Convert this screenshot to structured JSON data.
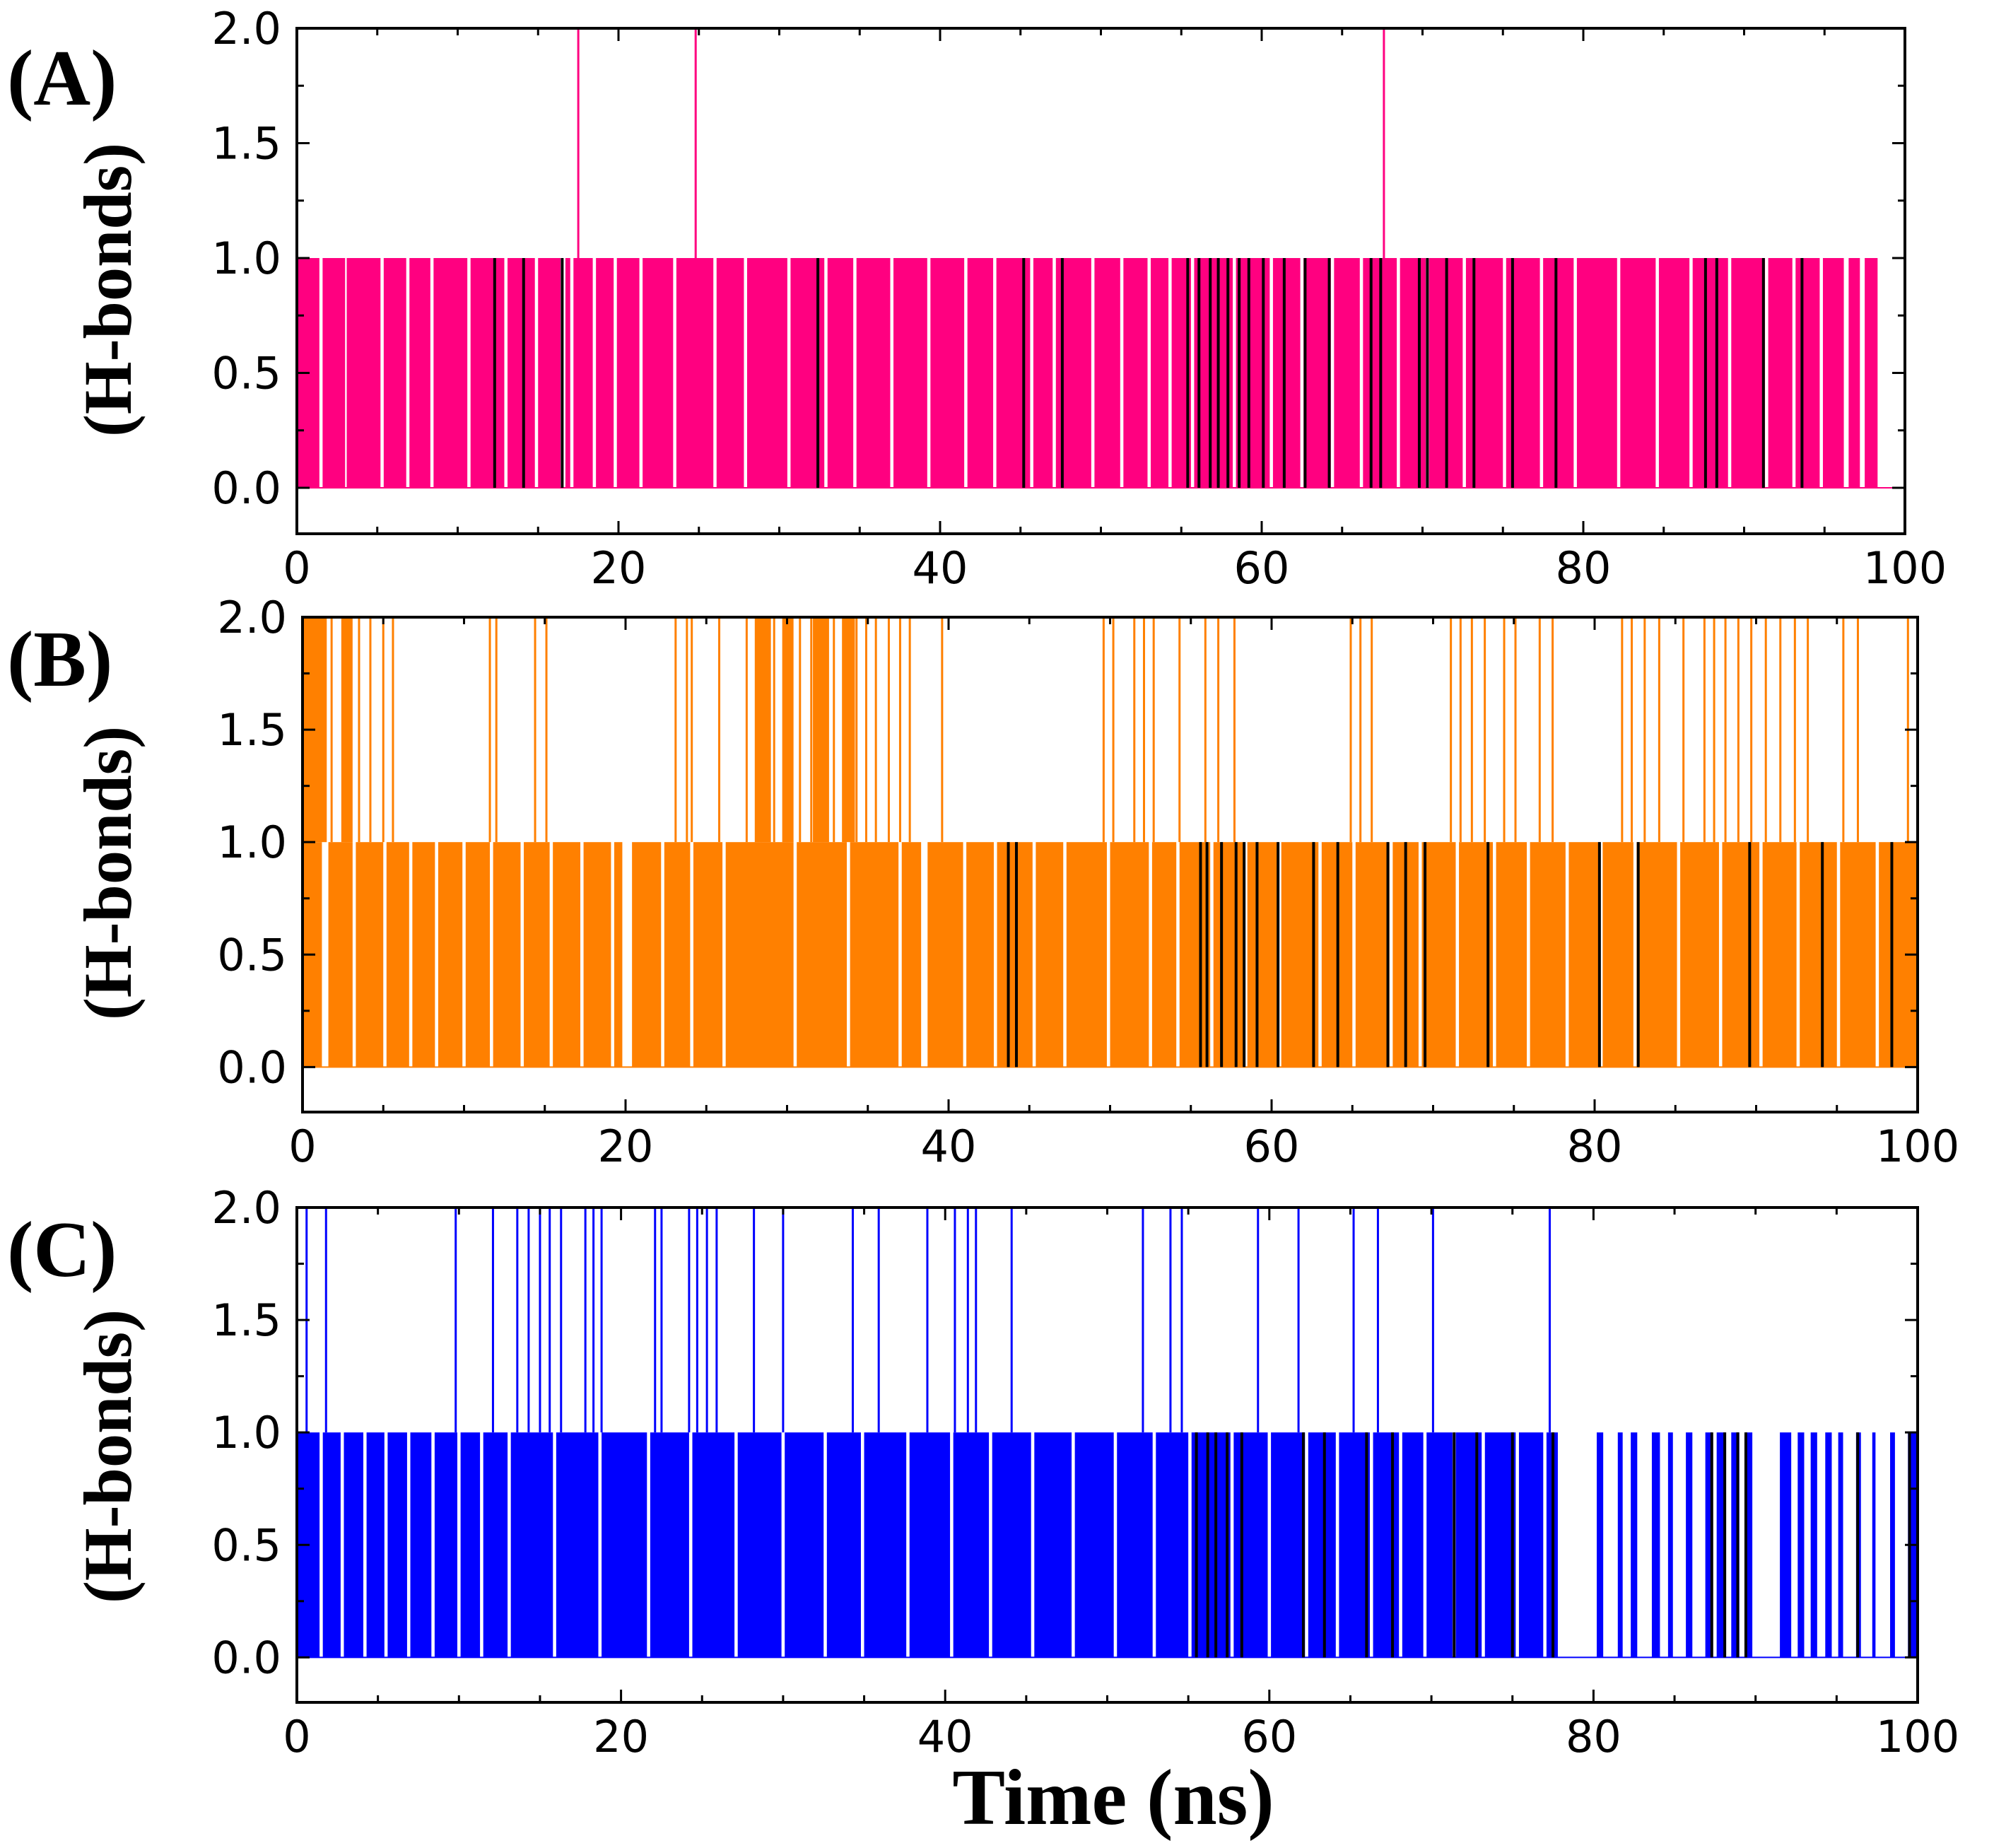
{
  "xlabel": "Time (ns)",
  "colors": {
    "A": "#ff0080",
    "B": "#ff8000",
    "C": "#0000ff",
    "dark": "#000000",
    "frame": "#000000"
  },
  "chart_data": [
    {
      "id": "A",
      "type": "bar",
      "title": "(A)",
      "ylabel": "(H-bonds)",
      "xlabel": "",
      "xlim": [
        0,
        100
      ],
      "ylim": [
        -0.2,
        2.0
      ],
      "xticks": [
        "0",
        "20",
        "40",
        "60",
        "80",
        "100"
      ],
      "yticks": [
        "0.0",
        "0.5",
        "1.0",
        "1.5",
        "2.0"
      ],
      "grid": false,
      "series": [
        {
          "name": "H-bonds",
          "color": "#ff0080",
          "ones": [
            [
              0.0,
              1.4
            ],
            [
              1.6,
              3.0
            ],
            [
              3.1,
              5.2
            ],
            [
              5.4,
              6.8
            ],
            [
              7.0,
              8.3
            ],
            [
              8.5,
              10.6
            ],
            [
              10.8,
              12.9
            ],
            [
              13.1,
              14.8
            ],
            [
              15.0,
              16.4
            ],
            [
              16.7,
              17.0
            ],
            [
              17.2,
              18.4
            ],
            [
              18.6,
              19.7
            ],
            [
              19.9,
              21.3
            ],
            [
              21.5,
              23.4
            ],
            [
              23.6,
              25.9
            ],
            [
              26.1,
              27.8
            ],
            [
              28.0,
              30.5
            ],
            [
              30.7,
              32.8
            ],
            [
              33.0,
              34.6
            ],
            [
              34.8,
              36.9
            ],
            [
              37.1,
              39.2
            ],
            [
              39.4,
              41.5
            ],
            [
              41.7,
              43.3
            ],
            [
              43.5,
              45.6
            ],
            [
              45.8,
              47.0
            ],
            [
              47.2,
              49.4
            ],
            [
              49.6,
              51.2
            ],
            [
              51.4,
              52.9
            ],
            [
              53.1,
              54.2
            ],
            [
              54.4,
              55.6
            ],
            [
              55.8,
              58.2
            ],
            [
              58.4,
              60.5
            ],
            [
              60.7,
              62.4
            ],
            [
              62.6,
              64.3
            ],
            [
              64.5,
              66.1
            ],
            [
              66.3,
              68.4
            ],
            [
              68.6,
              70.2
            ],
            [
              70.4,
              72.5
            ],
            [
              72.7,
              75.0
            ],
            [
              75.2,
              77.3
            ],
            [
              77.5,
              79.4
            ],
            [
              79.6,
              82.1
            ],
            [
              82.3,
              84.5
            ],
            [
              84.7,
              86.6
            ],
            [
              86.8,
              89.0
            ],
            [
              89.2,
              91.3
            ],
            [
              91.5,
              93.0
            ],
            [
              93.2,
              94.7
            ],
            [
              94.9,
              96.2
            ],
            [
              96.5,
              97.2
            ],
            [
              97.5,
              98.3
            ]
          ],
          "twos": [
            17.5,
            24.8,
            67.6
          ],
          "dark_x": [
            12.3,
            14.1,
            16.5,
            32.4,
            45.2,
            47.6,
            55.4,
            56.1,
            56.8,
            57.3,
            57.9,
            58.6,
            59.2,
            60.1,
            61.4,
            62.7,
            64.2,
            66.8,
            67.4,
            69.8,
            70.3,
            71.5,
            73.2,
            75.6,
            78.3,
            87.6,
            88.3,
            91.2,
            93.6
          ]
        }
      ]
    },
    {
      "id": "B",
      "type": "bar",
      "title": "(B)",
      "ylabel": "(H-bonds)",
      "xlabel": "",
      "xlim": [
        0,
        100
      ],
      "ylim": [
        -0.2,
        2.0
      ],
      "xticks": [
        "0",
        "20",
        "40",
        "60",
        "80",
        "100"
      ],
      "yticks": [
        "0.0",
        "0.5",
        "1.0",
        "1.5",
        "2.0"
      ],
      "grid": false,
      "series": [
        {
          "name": "H-bonds",
          "color": "#ff8000",
          "ones": [
            [
              0.0,
              1.2
            ],
            [
              1.6,
              3.1
            ],
            [
              3.3,
              5.0
            ],
            [
              5.2,
              6.6
            ],
            [
              6.8,
              8.2
            ],
            [
              8.4,
              9.9
            ],
            [
              10.1,
              11.6
            ],
            [
              11.8,
              13.5
            ],
            [
              13.7,
              15.3
            ],
            [
              15.5,
              17.2
            ],
            [
              17.4,
              19.1
            ],
            [
              19.3,
              19.8
            ],
            [
              20.4,
              22.2
            ],
            [
              22.4,
              24.0
            ],
            [
              24.2,
              26.0
            ],
            [
              26.2,
              30.4
            ],
            [
              30.6,
              33.7
            ],
            [
              33.9,
              36.9
            ],
            [
              37.1,
              38.3
            ],
            [
              38.7,
              40.9
            ],
            [
              41.1,
              42.8
            ],
            [
              43.0,
              45.2
            ],
            [
              45.4,
              47.1
            ],
            [
              47.3,
              49.8
            ],
            [
              50.0,
              52.4
            ],
            [
              52.6,
              54.1
            ],
            [
              54.3,
              56.2
            ],
            [
              56.4,
              58.3
            ],
            [
              58.5,
              60.4
            ],
            [
              60.6,
              62.9
            ],
            [
              63.1,
              65.0
            ],
            [
              65.2,
              67.3
            ],
            [
              67.5,
              69.1
            ],
            [
              69.3,
              71.4
            ],
            [
              71.6,
              73.7
            ],
            [
              73.9,
              75.8
            ],
            [
              76.0,
              78.2
            ],
            [
              78.4,
              80.3
            ],
            [
              80.5,
              82.4
            ],
            [
              82.6,
              85.1
            ],
            [
              85.3,
              87.7
            ],
            [
              87.9,
              90.2
            ],
            [
              90.4,
              92.5
            ],
            [
              92.7,
              95.0
            ],
            [
              95.2,
              97.4
            ],
            [
              97.6,
              100.0
            ]
          ],
          "twos_blocks": [
            [
              0.0,
              1.5
            ],
            [
              2.4,
              3.1
            ],
            [
              28.0,
              29.0
            ],
            [
              29.7,
              30.4
            ],
            [
              31.6,
              32.6
            ],
            [
              33.4,
              34.2
            ]
          ],
          "twos": [
            0.4,
            1.8,
            2.7,
            3.5,
            4.2,
            5.0,
            5.6,
            11.6,
            12.0,
            14.4,
            15.1,
            23.1,
            23.8,
            24.1,
            25.8,
            27.5,
            28.4,
            29.2,
            30.0,
            30.8,
            31.5,
            32.2,
            32.9,
            33.6,
            34.3,
            34.9,
            35.5,
            36.3,
            37.0,
            37.6,
            39.6,
            49.6,
            50.2,
            51.5,
            52.1,
            52.7,
            54.3,
            55.9,
            56.7,
            57.7,
            64.9,
            65.5,
            66.2,
            71.1,
            71.7,
            72.4,
            73.2,
            74.4,
            75.1,
            76.6,
            77.4,
            81.7,
            82.3,
            83.1,
            84.0,
            85.5,
            86.8,
            87.4,
            88.1,
            88.9,
            89.7,
            90.6,
            91.5,
            92.4,
            93.2,
            95.4,
            96.3,
            99.4
          ],
          "dark_x": [
            43.7,
            44.2,
            55.6,
            56.0,
            56.9,
            57.8,
            58.3,
            59.1,
            60.4,
            62.6,
            64.1,
            67.2,
            68.3,
            69.5,
            73.4,
            80.3,
            82.7,
            89.6,
            94.1,
            98.4
          ]
        }
      ]
    },
    {
      "id": "C",
      "type": "bar",
      "title": "(C)",
      "ylabel": "(H-bonds)",
      "xlabel": "Time (ns)",
      "xlim": [
        0,
        100
      ],
      "ylim": [
        -0.2,
        2.0
      ],
      "xticks": [
        "0",
        "20",
        "40",
        "60",
        "80",
        "100"
      ],
      "yticks": [
        "0.0",
        "0.5",
        "1.0",
        "1.5",
        "2.0"
      ],
      "grid": false,
      "series": [
        {
          "name": "H-bonds",
          "color": "#0000ff",
          "ones": [
            [
              0.0,
              1.4
            ],
            [
              1.6,
              2.7
            ],
            [
              2.9,
              4.1
            ],
            [
              4.3,
              5.4
            ],
            [
              5.6,
              6.8
            ],
            [
              7.0,
              8.3
            ],
            [
              8.5,
              9.9
            ],
            [
              10.1,
              11.3
            ],
            [
              11.5,
              13.0
            ],
            [
              13.2,
              15.8
            ],
            [
              16.0,
              18.6
            ],
            [
              18.8,
              21.6
            ],
            [
              21.8,
              24.2
            ],
            [
              24.4,
              27.0
            ],
            [
              27.2,
              29.9
            ],
            [
              30.1,
              32.5
            ],
            [
              32.7,
              34.8
            ],
            [
              35.0,
              37.6
            ],
            [
              37.8,
              40.3
            ],
            [
              40.5,
              42.7
            ],
            [
              42.9,
              45.3
            ],
            [
              45.5,
              47.8
            ],
            [
              48.0,
              50.4
            ],
            [
              50.6,
              52.8
            ],
            [
              53.0,
              55.0
            ],
            [
              55.2,
              57.6
            ],
            [
              57.8,
              59.9
            ],
            [
              60.1,
              62.2
            ],
            [
              62.4,
              64.1
            ],
            [
              64.3,
              66.2
            ],
            [
              66.4,
              68.0
            ],
            [
              68.2,
              69.5
            ],
            [
              69.7,
              71.3
            ],
            [
              71.5,
              73.1
            ],
            [
              73.3,
              75.2
            ],
            [
              75.4,
              76.9
            ],
            [
              77.1,
              77.8
            ],
            [
              80.2,
              80.6
            ],
            [
              81.5,
              81.8
            ],
            [
              82.3,
              82.7
            ],
            [
              83.6,
              84.1
            ],
            [
              84.6,
              84.9
            ],
            [
              85.7,
              86.1
            ],
            [
              86.9,
              87.3
            ],
            [
              87.6,
              88.1
            ],
            [
              88.5,
              89.0
            ],
            [
              89.4,
              89.8
            ],
            [
              91.5,
              92.2
            ],
            [
              92.6,
              93.0
            ],
            [
              93.4,
              93.8
            ],
            [
              94.3,
              94.7
            ],
            [
              95.1,
              95.4
            ],
            [
              96.2,
              96.5
            ],
            [
              97.2,
              97.4
            ],
            [
              98.3,
              98.6
            ],
            [
              99.4,
              100.0
            ]
          ],
          "twos": [
            0.6,
            1.8,
            9.8,
            12.1,
            13.6,
            14.3,
            15.0,
            15.6,
            16.3,
            17.8,
            18.3,
            18.8,
            22.1,
            22.5,
            24.2,
            24.7,
            25.3,
            25.9,
            28.2,
            30.0,
            34.3,
            35.9,
            38.9,
            40.6,
            41.4,
            41.9,
            44.1,
            52.2,
            53.9,
            54.6,
            59.3,
            61.8,
            65.2,
            66.7,
            70.1,
            77.3
          ],
          "dark_x": [
            55.5,
            56.2,
            56.7,
            57.4,
            58.3,
            62.1,
            63.4,
            66.0,
            67.6,
            71.4,
            72.8,
            75.0,
            77.5,
            87.3,
            88.1,
            88.9,
            89.4,
            96.3,
            99.5
          ]
        }
      ]
    }
  ]
}
